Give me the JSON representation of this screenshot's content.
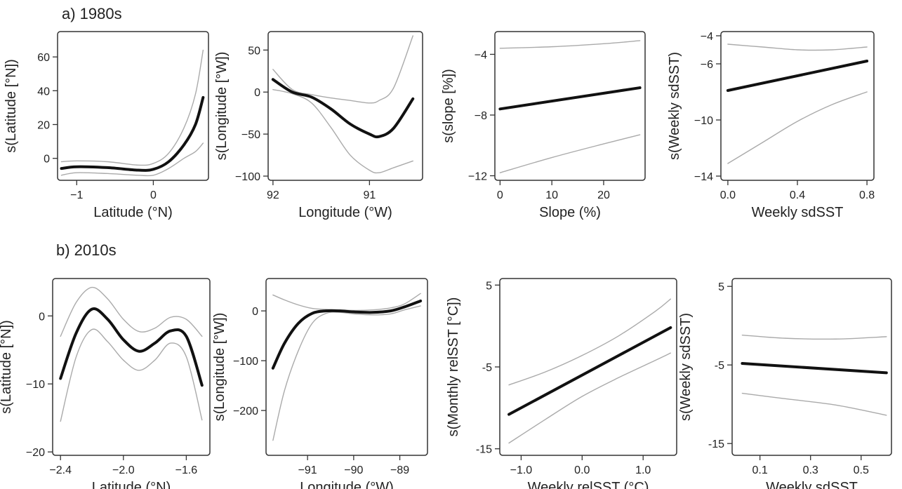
{
  "rows": [
    {
      "label": "a) 1980s"
    },
    {
      "label": "b) 2010s"
    }
  ],
  "colors": {
    "fit": "#111111",
    "ci": "#aaaaaa",
    "axis": "#333333"
  },
  "chart_data": [
    {
      "type": "line",
      "panel": "a1",
      "xlabel": "Latitude (°N)",
      "ylabel": "s(Latitude [°N])",
      "xlim": [
        -1.25,
        0.72
      ],
      "ylim": [
        -13,
        75
      ],
      "xticks": [
        -1,
        0
      ],
      "yticks": [
        0,
        20,
        40,
        60
      ],
      "xticklabels": [
        "−1",
        "0"
      ],
      "yticklabels": [
        "0",
        "20",
        "40",
        "60"
      ],
      "series": [
        {
          "role": "fit",
          "x": [
            -1.2,
            -1.0,
            -0.6,
            -0.2,
            0.0,
            0.2,
            0.4,
            0.55,
            0.65
          ],
          "y": [
            -6,
            -5,
            -5.5,
            -7,
            -6.5,
            -2,
            8,
            20,
            36
          ]
        },
        {
          "role": "upper",
          "x": [
            -1.2,
            -1.0,
            -0.6,
            -0.2,
            0.0,
            0.2,
            0.4,
            0.55,
            0.65
          ],
          "y": [
            -2,
            -1.5,
            -2,
            -4,
            -3,
            3,
            18,
            38,
            64
          ]
        },
        {
          "role": "lower",
          "x": [
            -1.2,
            -1.0,
            -0.6,
            -0.2,
            0.0,
            0.2,
            0.4,
            0.55,
            0.65
          ],
          "y": [
            -10,
            -8.5,
            -9,
            -10,
            -10,
            -6,
            0,
            4,
            9
          ]
        }
      ]
    },
    {
      "type": "line",
      "panel": "a2",
      "xlabel": "Longitude (°W)",
      "ylabel": "s(Longitude [°W])",
      "xlim": [
        92.05,
        90.45
      ],
      "ylim": [
        -105,
        72
      ],
      "xticks": [
        92,
        91
      ],
      "yticks": [
        50,
        0,
        -50,
        -100
      ],
      "xticklabels": [
        "92",
        "91"
      ],
      "yticklabels": [
        "50",
        "0",
        "−50",
        "−100"
      ],
      "series": [
        {
          "role": "fit",
          "x": [
            92.0,
            91.8,
            91.6,
            91.4,
            91.2,
            91.0,
            90.9,
            90.75,
            90.55
          ],
          "y": [
            15,
            0,
            -6,
            -20,
            -38,
            -50,
            -53,
            -43,
            -8
          ]
        },
        {
          "role": "upper",
          "x": [
            92.0,
            91.8,
            91.6,
            91.4,
            91.2,
            91.0,
            90.9,
            90.75,
            90.55
          ],
          "y": [
            27,
            3,
            -3,
            -7,
            -10,
            -13,
            -10,
            5,
            67
          ]
        },
        {
          "role": "lower",
          "x": [
            92.0,
            91.8,
            91.6,
            91.4,
            91.2,
            91.0,
            90.9,
            90.75,
            90.55
          ],
          "y": [
            3,
            -2,
            -13,
            -42,
            -75,
            -93,
            -96,
            -90,
            -82
          ]
        }
      ]
    },
    {
      "type": "line",
      "panel": "a3",
      "xlabel": "Slope (%)",
      "ylabel": "s(slope [%])",
      "xlim": [
        -1,
        28
      ],
      "ylim": [
        -12.3,
        -2.5
      ],
      "xticks": [
        0,
        10,
        20
      ],
      "yticks": [
        -4,
        -8,
        -12
      ],
      "xticklabels": [
        "0",
        "10",
        "20"
      ],
      "yticklabels": [
        "−4",
        "−8",
        "−12"
      ],
      "series": [
        {
          "role": "fit",
          "x": [
            0,
            27
          ],
          "y": [
            -7.6,
            -6.2
          ]
        },
        {
          "role": "upper",
          "x": [
            0,
            10,
            20,
            27
          ],
          "y": [
            -3.6,
            -3.5,
            -3.3,
            -3.1
          ]
        },
        {
          "role": "lower",
          "x": [
            0,
            10,
            20,
            27
          ],
          "y": [
            -11.8,
            -10.8,
            -9.9,
            -9.3
          ]
        }
      ]
    },
    {
      "type": "line",
      "panel": "a4",
      "xlabel": "Weekly sdSST",
      "ylabel": "s(Weekly sdSST)",
      "xlim": [
        -0.04,
        0.84
      ],
      "ylim": [
        -14.3,
        -3.7
      ],
      "xticks": [
        0.0,
        0.4,
        0.8
      ],
      "yticks": [
        -4,
        -6,
        -10,
        -14
      ],
      "xticklabels": [
        "0.0",
        "0.4",
        "0.8"
      ],
      "yticklabels": [
        "−4",
        "−6",
        "−10",
        "−14"
      ],
      "series": [
        {
          "role": "fit",
          "x": [
            0.0,
            0.8
          ],
          "y": [
            -7.9,
            -5.8
          ]
        },
        {
          "role": "upper",
          "x": [
            0.0,
            0.2,
            0.4,
            0.6,
            0.8
          ],
          "y": [
            -4.6,
            -4.8,
            -5.0,
            -5.0,
            -4.8
          ]
        },
        {
          "role": "lower",
          "x": [
            0.0,
            0.2,
            0.4,
            0.6,
            0.8
          ],
          "y": [
            -13.1,
            -11.6,
            -10.1,
            -8.9,
            -8.0
          ]
        }
      ]
    },
    {
      "type": "line",
      "panel": "b1",
      "xlabel": "Latitude (°N)",
      "ylabel": "s(Latitude [°N])",
      "xlim": [
        -2.45,
        -1.45
      ],
      "ylim": [
        -20.5,
        5.5
      ],
      "xticks": [
        -2.4,
        -2.0,
        -1.6
      ],
      "yticks": [
        0,
        -10,
        -20
      ],
      "xticklabels": [
        "−2.4",
        "−2.0",
        "−1.6"
      ],
      "yticklabels": [
        "0",
        "−10",
        "−20"
      ],
      "series": [
        {
          "role": "fit",
          "x": [
            -2.4,
            -2.3,
            -2.2,
            -2.1,
            -2.0,
            -1.9,
            -1.8,
            -1.7,
            -1.6,
            -1.5
          ],
          "y": [
            -9.2,
            -2.5,
            1,
            -0.5,
            -3.5,
            -5.2,
            -4,
            -2.2,
            -3,
            -10.2
          ]
        },
        {
          "role": "upper",
          "x": [
            -2.4,
            -2.3,
            -2.2,
            -2.1,
            -2.0,
            -1.9,
            -1.8,
            -1.7,
            -1.6,
            -1.5
          ],
          "y": [
            -3,
            2,
            4.2,
            2.5,
            -0.5,
            -2.3,
            -1.8,
            -0.2,
            -0.5,
            -3
          ]
        },
        {
          "role": "lower",
          "x": [
            -2.4,
            -2.3,
            -2.2,
            -2.1,
            -2.0,
            -1.9,
            -1.8,
            -1.7,
            -1.6,
            -1.5
          ],
          "y": [
            -15.5,
            -6,
            -2,
            -3.8,
            -6.5,
            -8,
            -6.5,
            -4,
            -6,
            -15.3
          ]
        }
      ]
    },
    {
      "type": "line",
      "panel": "b2",
      "xlabel": "Longitude (°W)",
      "ylabel": "s(Longitude [°W])",
      "xlim": [
        -91.9,
        -88.4
      ],
      "ylim": [
        -290,
        65
      ],
      "xticks": [
        -91,
        -90,
        -89
      ],
      "yticks": [
        0,
        -100,
        -200
      ],
      "xticklabels": [
        "−91",
        "−90",
        "−89"
      ],
      "yticklabels": [
        "0",
        "−100",
        "−200"
      ],
      "series": [
        {
          "role": "fit",
          "x": [
            -91.75,
            -91.5,
            -91.2,
            -90.9,
            -90.6,
            -90.3,
            -90.0,
            -89.6,
            -89.2,
            -88.9,
            -88.55
          ],
          "y": [
            -115,
            -65,
            -25,
            -5,
            0,
            0,
            -2,
            -3,
            0,
            8,
            20
          ]
        },
        {
          "role": "upper",
          "x": [
            -91.75,
            -91.5,
            -91.2,
            -90.9,
            -90.6,
            -90.3,
            -90.0,
            -89.6,
            -89.2,
            -88.9,
            -88.55
          ],
          "y": [
            32,
            22,
            12,
            5,
            3,
            2,
            1,
            2,
            6,
            14,
            35
          ]
        },
        {
          "role": "lower",
          "x": [
            -91.75,
            -91.5,
            -91.2,
            -90.9,
            -90.6,
            -90.3,
            -90.0,
            -89.6,
            -89.2,
            -88.9,
            -88.55
          ],
          "y": [
            -260,
            -160,
            -80,
            -25,
            -5,
            -3,
            -6,
            -8,
            -6,
            2,
            10
          ]
        }
      ]
    },
    {
      "type": "line",
      "panel": "b3",
      "xlabel": "Weekly relSST (°C)",
      "ylabel": "s(Monthly relSST [°C])",
      "xlim": [
        -1.35,
        1.55
      ],
      "ylim": [
        -15.8,
        5.8
      ],
      "xticks": [
        -1.0,
        0.0,
        1.0
      ],
      "yticks": [
        5,
        -5,
        -15
      ],
      "xticklabels": [
        "−1.0",
        "0.0",
        "1.0"
      ],
      "yticklabels": [
        "5",
        "-5",
        "-15"
      ],
      "series": [
        {
          "role": "fit",
          "x": [
            -1.2,
            1.45
          ],
          "y": [
            -10.8,
            -0.2
          ]
        },
        {
          "role": "upper",
          "x": [
            -1.2,
            -0.6,
            0.0,
            0.6,
            1.2,
            1.45
          ],
          "y": [
            -7.2,
            -5.6,
            -3.6,
            -1.2,
            1.8,
            3.3
          ]
        },
        {
          "role": "lower",
          "x": [
            -1.2,
            -0.6,
            0.0,
            0.6,
            1.2,
            1.45
          ],
          "y": [
            -14.3,
            -11.4,
            -8.6,
            -6.3,
            -4.2,
            -3.3
          ]
        }
      ]
    },
    {
      "type": "line",
      "panel": "b4",
      "xlabel": "Weekly sdSST",
      "ylabel": "s(Weekly sdSST)",
      "xlim": [
        -0.01,
        0.62
      ],
      "ylim": [
        -16.5,
        6
      ],
      "xticks": [
        0.1,
        0.3,
        0.5
      ],
      "yticks": [
        5,
        -5,
        -15
      ],
      "xticklabels": [
        "0.1",
        "0.3",
        "0.5"
      ],
      "yticklabels": [
        "5",
        "-5",
        "-15"
      ],
      "series": [
        {
          "role": "fit",
          "x": [
            0.03,
            0.6
          ],
          "y": [
            -4.8,
            -6.0
          ]
        },
        {
          "role": "upper",
          "x": [
            0.03,
            0.2,
            0.4,
            0.6
          ],
          "y": [
            -1.2,
            -1.6,
            -1.7,
            -1.4
          ]
        },
        {
          "role": "lower",
          "x": [
            0.03,
            0.2,
            0.4,
            0.6
          ],
          "y": [
            -8.6,
            -9.3,
            -10.1,
            -11.4
          ]
        }
      ]
    }
  ]
}
